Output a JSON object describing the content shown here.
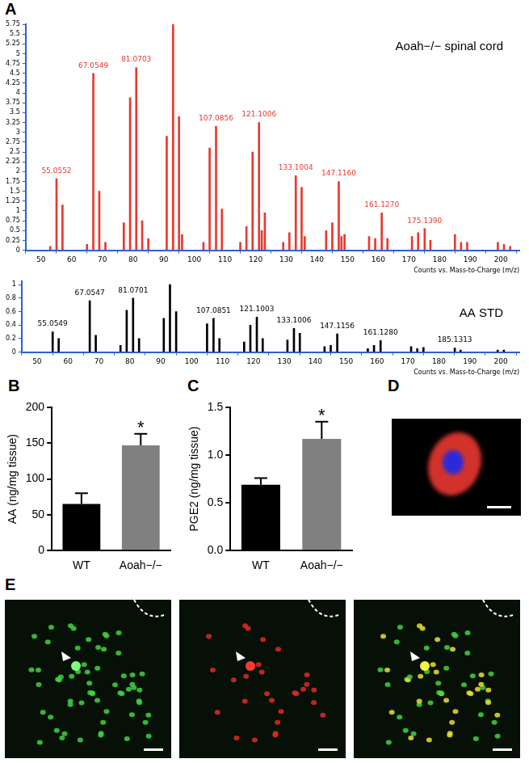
{
  "chart_data": [
    {
      "panel": "A",
      "type": "bar",
      "annotation": "Aoah−/− spinal cord",
      "x_label": "Counts vs. Mass-to-Charge (m/z)",
      "x": [
        53,
        55.0552,
        57,
        65,
        67.0549,
        69,
        71,
        77,
        79.05,
        81.0703,
        83,
        85,
        91,
        93.07,
        95,
        96,
        103,
        105,
        107.0856,
        109,
        115,
        117,
        119,
        121.1006,
        122,
        123,
        129,
        131,
        133.1004,
        135,
        136,
        143,
        145,
        147.116,
        148,
        149,
        157,
        159,
        161.127,
        163,
        171,
        173,
        175.139,
        177,
        185,
        187,
        189,
        199,
        201,
        203
      ],
      "values": [
        0.1,
        1.82,
        1.15,
        0.15,
        4.5,
        1.5,
        0.2,
        0.7,
        3.88,
        4.65,
        0.75,
        0.3,
        2.9,
        5.75,
        3.4,
        0.4,
        0.2,
        2.6,
        3.15,
        1.05,
        0.2,
        0.6,
        2.5,
        3.25,
        0.5,
        0.95,
        0.2,
        0.45,
        1.9,
        1.6,
        0.35,
        0.5,
        0.7,
        1.75,
        0.35,
        0.4,
        0.35,
        0.3,
        0.95,
        0.3,
        0.35,
        0.45,
        0.55,
        0.25,
        0.4,
        0.2,
        0.2,
        0.2,
        0.15,
        0.1
      ],
      "peak_labels": [
        {
          "x": 55.0552,
          "label": "55.0552"
        },
        {
          "x": 67.0549,
          "label": "67.0549"
        },
        {
          "x": 81.0703,
          "label": "81.0703"
        },
        {
          "x": 107.0856,
          "label": "107.0856"
        },
        {
          "x": 121.1006,
          "label": "121.1006"
        },
        {
          "x": 133.1004,
          "label": "133.1004"
        },
        {
          "x": 147.116,
          "label": "147.1160"
        },
        {
          "x": 161.127,
          "label": "161.1270"
        },
        {
          "x": 175.139,
          "label": "175.1390"
        }
      ],
      "color": "#e8392f",
      "xlim": [
        45,
        206
      ],
      "xticks": [
        50,
        60,
        70,
        80,
        90,
        100,
        110,
        120,
        130,
        140,
        150,
        160,
        170,
        180,
        190,
        200
      ],
      "ylim": [
        0,
        5.75
      ],
      "yticks": [
        0,
        0.25,
        0.5,
        0.75,
        1,
        1.25,
        1.5,
        1.75,
        2,
        2.25,
        2.5,
        2.75,
        3,
        3.25,
        3.5,
        3.75,
        4,
        4.25,
        4.5,
        4.75,
        5,
        5.25,
        5.5,
        5.75
      ],
      "grid": false
    },
    {
      "type": "bar",
      "annotation": "AA STD",
      "x_label": "Counts vs. Mass-to-Charge (m/z)",
      "x": [
        55.0549,
        57,
        67.0547,
        69,
        77,
        79,
        81.0701,
        83,
        91,
        93,
        95,
        105,
        107.0851,
        109,
        117,
        119,
        121.1003,
        123,
        131,
        133.1006,
        135,
        143,
        145,
        147.1156,
        157,
        159,
        161.128,
        171,
        173,
        175,
        185.1313,
        187,
        199,
        201
      ],
      "values": [
        0.3,
        0.2,
        0.76,
        0.25,
        0.1,
        0.62,
        0.8,
        0.2,
        0.5,
        1.0,
        0.6,
        0.42,
        0.5,
        0.2,
        0.15,
        0.4,
        0.52,
        0.2,
        0.18,
        0.35,
        0.28,
        0.08,
        0.1,
        0.27,
        0.05,
        0.1,
        0.17,
        0.08,
        0.05,
        0.07,
        0.06,
        0.03,
        0.03,
        0.03
      ],
      "peak_labels": [
        {
          "x": 55.0549,
          "label": "55.0549"
        },
        {
          "x": 67.0547,
          "label": "67.0547"
        },
        {
          "x": 81.0701,
          "label": "81.0701"
        },
        {
          "x": 107.0851,
          "label": "107.0851"
        },
        {
          "x": 121.1003,
          "label": "121.1003"
        },
        {
          "x": 133.1006,
          "label": "133.1006"
        },
        {
          "x": 147.1156,
          "label": "147.1156"
        },
        {
          "x": 161.128,
          "label": "161.1280"
        },
        {
          "x": 185.1313,
          "label": "185.1313"
        }
      ],
      "color": "#000000",
      "xlim": [
        45,
        206
      ],
      "xticks": [
        50,
        60,
        70,
        80,
        90,
        100,
        110,
        120,
        130,
        140,
        150,
        160,
        170,
        180,
        190,
        200
      ],
      "ylim": [
        0,
        1.05
      ],
      "yticks": [
        0,
        0.2,
        0.4,
        0.6,
        0.8,
        1
      ],
      "grid": false
    },
    {
      "panel": "B",
      "type": "bar",
      "categories": [
        "WT",
        "Aoah−/−"
      ],
      "values": [
        65,
        147
      ],
      "errors": [
        15,
        16
      ],
      "colors": [
        "#000000",
        "#808080"
      ],
      "y_label": "AA (ng/mg tissue)",
      "ylim": [
        0,
        200
      ],
      "yticks": [
        0,
        50,
        100,
        150,
        200
      ],
      "grid": false,
      "annotations": [
        {
          "category": "Aoah−/−",
          "text": "*"
        }
      ]
    },
    {
      "panel": "C",
      "type": "bar",
      "categories": [
        "WT",
        "Aoah−/−"
      ],
      "values": [
        0.69,
        1.17
      ],
      "errors": [
        0.07,
        0.18
      ],
      "colors": [
        "#000000",
        "#808080"
      ],
      "y_label": "PGE2 (ng/mg tissue)",
      "ylim": [
        0,
        1.5
      ],
      "yticks": [
        {
          "value": 0,
          "label": "0.0"
        },
        {
          "value": 0.5,
          "label": "0.5"
        },
        {
          "value": 1,
          "label": "1.0"
        },
        {
          "value": 1.5,
          "label": "1.5"
        }
      ],
      "grid": false,
      "annotations": [
        {
          "category": "Aoah−/−",
          "text": "*"
        }
      ]
    }
  ],
  "images": [
    {
      "panel": "D"
    },
    {
      "panel": "E"
    }
  ]
}
